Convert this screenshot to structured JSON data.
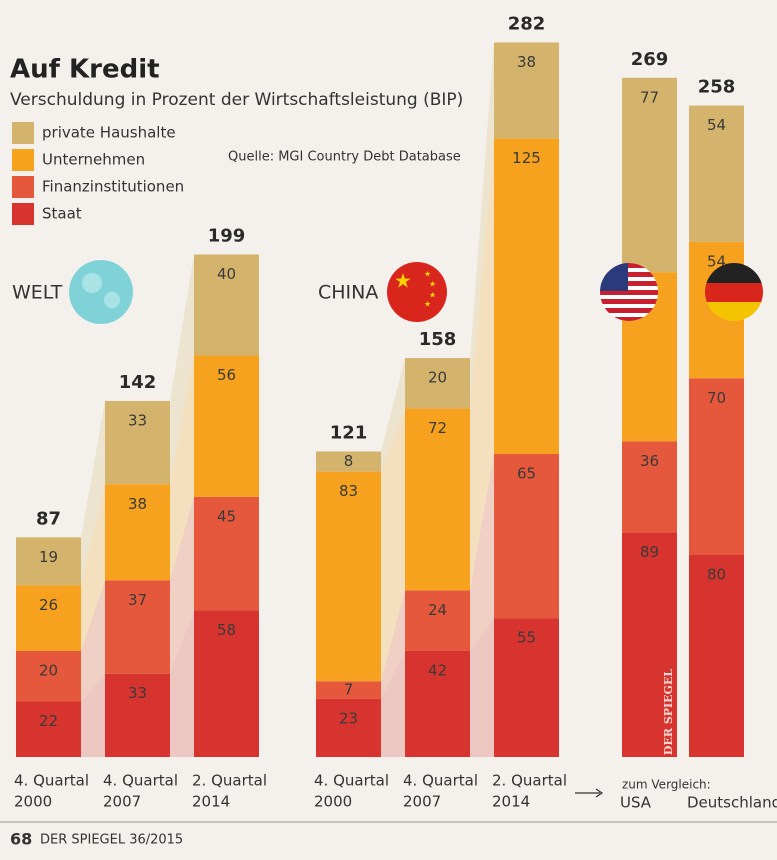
{
  "chart_data": {
    "type": "stacked-bar",
    "title": "Auf Kredit",
    "subtitle": "Verschuldung in Prozent der Wirtschaftsleistung (BIP)",
    "source": "Quelle: MGI Country Debt Database",
    "groups": [
      "WELT",
      "CHINA"
    ],
    "comparison_label": "zum Vergleich:",
    "categories": [
      [
        "4. Quartal",
        "2000"
      ],
      [
        "4. Quartal",
        "2007"
      ],
      [
        "2. Quartal",
        "2014"
      ],
      [
        "4. Quartal",
        "2000"
      ],
      [
        "4. Quartal",
        "2007"
      ],
      [
        "2. Quartal",
        "2014"
      ],
      [
        "USA"
      ],
      [
        "Deutschland"
      ]
    ],
    "series": [
      {
        "name": "Staat",
        "color": "#d8342f",
        "values": [
          22,
          33,
          58,
          23,
          42,
          55,
          89,
          80
        ]
      },
      {
        "name": "Finanzinstitutionen",
        "color": "#e5583b",
        "values": [
          20,
          37,
          45,
          7,
          24,
          65,
          36,
          70
        ]
      },
      {
        "name": "Unternehmen",
        "color": "#f6a21e",
        "values": [
          26,
          38,
          56,
          83,
          72,
          125,
          67,
          54
        ]
      },
      {
        "name": "private Haushalte",
        "color": "#d4b46c",
        "values": [
          19,
          33,
          40,
          8,
          20,
          38,
          77,
          54
        ]
      }
    ],
    "totals": [
      87,
      142,
      199,
      121,
      158,
      282,
      269,
      258
    ],
    "watermark": "DER SPIEGEL",
    "footer": {
      "page": "68",
      "publication": "DER SPIEGEL 36/2015"
    }
  }
}
